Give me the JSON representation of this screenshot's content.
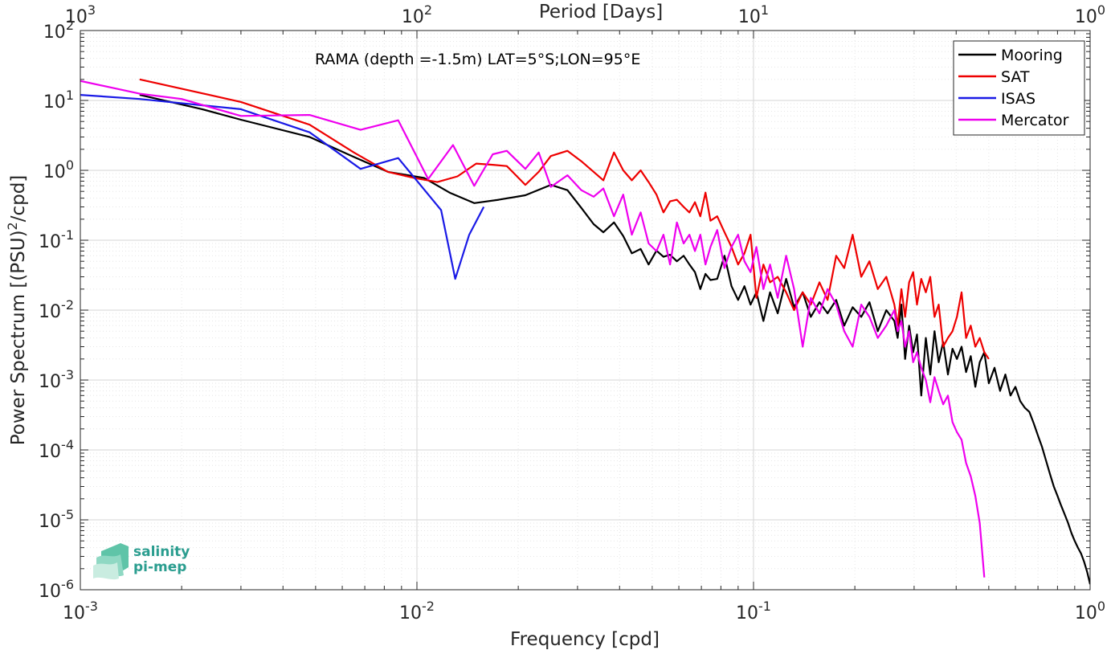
{
  "chart_data": {
    "type": "line",
    "title": "",
    "annotation": "RAMA (depth =-1.5m) LAT=5°S;LON=95°E",
    "xlabel": "Frequency [cpd]",
    "ylabel": "Power Spectrum [(PSU)^2/cpd]",
    "top_xlabel": "Period [Days]",
    "xscale": "log",
    "yscale": "log",
    "xlim": [
      0.001,
      1
    ],
    "ylim": [
      1e-06,
      100
    ],
    "grid": true,
    "legend_position": "top-right",
    "x_ticks": [
      {
        "value": 0.001,
        "base": "10",
        "exp": "-3"
      },
      {
        "value": 0.01,
        "base": "10",
        "exp": "-2"
      },
      {
        "value": 0.1,
        "base": "10",
        "exp": "-1"
      },
      {
        "value": 1,
        "base": "10",
        "exp": "0"
      }
    ],
    "top_ticks": [
      {
        "value": 0.001,
        "base": "10",
        "exp": "3"
      },
      {
        "value": 0.01,
        "base": "10",
        "exp": "2"
      },
      {
        "value": 0.1,
        "base": "10",
        "exp": "1"
      },
      {
        "value": 1,
        "base": "10",
        "exp": "0"
      }
    ],
    "y_ticks": [
      {
        "value": 100,
        "base": "10",
        "exp": "2"
      },
      {
        "value": 10,
        "base": "10",
        "exp": "1"
      },
      {
        "value": 1,
        "base": "10",
        "exp": "0"
      },
      {
        "value": 0.1,
        "base": "10",
        "exp": "-1"
      },
      {
        "value": 0.01,
        "base": "10",
        "exp": "-2"
      },
      {
        "value": 0.001,
        "base": "10",
        "exp": "-3"
      },
      {
        "value": 0.0001,
        "base": "10",
        "exp": "-4"
      },
      {
        "value": 1e-05,
        "base": "10",
        "exp": "-5"
      },
      {
        "value": 1e-06,
        "base": "10",
        "exp": "-6"
      }
    ],
    "series": [
      {
        "name": "Mooring",
        "color": "#000000",
        "x": [
          0.0015,
          0.0023,
          0.003,
          0.0048,
          0.0065,
          0.0082,
          0.0105,
          0.0125,
          0.0148,
          0.0175,
          0.021,
          0.025,
          0.028,
          0.0308,
          0.0335,
          0.0358,
          0.0385,
          0.041,
          0.0435,
          0.0462,
          0.0488,
          0.0515,
          0.054,
          0.0565,
          0.0592,
          0.062,
          0.0645,
          0.067,
          0.0695,
          0.072,
          0.0745,
          0.078,
          0.082,
          0.086,
          0.09,
          0.094,
          0.098,
          0.102,
          0.107,
          0.112,
          0.118,
          0.125,
          0.132,
          0.14,
          0.148,
          0.157,
          0.166,
          0.176,
          0.186,
          0.197,
          0.209,
          0.221,
          0.234,
          0.248,
          0.262,
          0.268,
          0.275,
          0.282,
          0.29,
          0.298,
          0.306,
          0.315,
          0.325,
          0.335,
          0.345,
          0.355,
          0.366,
          0.378,
          0.39,
          0.402,
          0.415,
          0.428,
          0.442,
          0.456,
          0.47,
          0.485,
          0.5,
          0.52,
          0.54,
          0.56,
          0.58,
          0.6,
          0.62,
          0.64,
          0.66,
          0.68,
          0.7,
          0.72,
          0.74,
          0.76,
          0.78,
          0.8,
          0.82,
          0.84,
          0.86,
          0.88,
          0.9,
          0.92,
          0.94,
          0.96,
          0.98,
          1.0
        ],
        "y": [
          12,
          7.5,
          5.3,
          3.0,
          1.55,
          0.95,
          0.78,
          0.48,
          0.34,
          0.38,
          0.44,
          0.62,
          0.52,
          0.29,
          0.17,
          0.13,
          0.18,
          0.115,
          0.065,
          0.075,
          0.045,
          0.071,
          0.058,
          0.062,
          0.05,
          0.06,
          0.045,
          0.035,
          0.02,
          0.033,
          0.027,
          0.028,
          0.06,
          0.022,
          0.014,
          0.022,
          0.012,
          0.018,
          0.007,
          0.018,
          0.009,
          0.028,
          0.011,
          0.018,
          0.008,
          0.013,
          0.009,
          0.014,
          0.006,
          0.011,
          0.008,
          0.013,
          0.005,
          0.01,
          0.007,
          0.004,
          0.012,
          0.002,
          0.006,
          0.0025,
          0.0045,
          0.0006,
          0.004,
          0.0012,
          0.005,
          0.0018,
          0.0035,
          0.0012,
          0.0028,
          0.002,
          0.003,
          0.0013,
          0.0022,
          0.0008,
          0.0018,
          0.0025,
          0.0009,
          0.0015,
          0.0007,
          0.0012,
          0.0006,
          0.0008,
          0.0005,
          0.0004,
          0.00035,
          0.00024,
          0.00016,
          0.00011,
          7e-05,
          4.5e-05,
          3e-05,
          2.2e-05,
          1.6e-05,
          1.2e-05,
          9e-06,
          6.5e-06,
          5e-06,
          4e-06,
          3.3e-06,
          2.5e-06,
          1.8e-06,
          1.2e-06
        ]
      },
      {
        "name": "SAT",
        "color": "#ee0000",
        "x": [
          0.0015,
          0.003,
          0.0048,
          0.0065,
          0.0082,
          0.0098,
          0.0115,
          0.0132,
          0.015,
          0.0168,
          0.0185,
          0.021,
          0.023,
          0.025,
          0.028,
          0.0308,
          0.0335,
          0.0358,
          0.0385,
          0.041,
          0.0435,
          0.0462,
          0.0488,
          0.0515,
          0.054,
          0.0565,
          0.0592,
          0.062,
          0.0645,
          0.067,
          0.0695,
          0.072,
          0.0745,
          0.078,
          0.082,
          0.086,
          0.09,
          0.094,
          0.098,
          0.102,
          0.107,
          0.112,
          0.118,
          0.125,
          0.132,
          0.14,
          0.148,
          0.157,
          0.166,
          0.176,
          0.186,
          0.197,
          0.209,
          0.221,
          0.234,
          0.248,
          0.262,
          0.268,
          0.275,
          0.282,
          0.29,
          0.298,
          0.306,
          0.315,
          0.325,
          0.335,
          0.345,
          0.355,
          0.366,
          0.378,
          0.39,
          0.402,
          0.415,
          0.428,
          0.442,
          0.456,
          0.47,
          0.485,
          0.5
        ],
        "y": [
          20,
          9.5,
          4.5,
          1.8,
          0.95,
          0.78,
          0.68,
          0.82,
          1.25,
          1.2,
          1.15,
          0.62,
          0.95,
          1.6,
          1.9,
          1.35,
          0.95,
          0.72,
          1.8,
          1.0,
          0.72,
          1.0,
          0.68,
          0.45,
          0.25,
          0.36,
          0.38,
          0.3,
          0.25,
          0.35,
          0.22,
          0.48,
          0.19,
          0.22,
          0.13,
          0.08,
          0.045,
          0.065,
          0.12,
          0.015,
          0.045,
          0.025,
          0.03,
          0.018,
          0.01,
          0.018,
          0.012,
          0.025,
          0.014,
          0.06,
          0.04,
          0.12,
          0.03,
          0.05,
          0.02,
          0.03,
          0.012,
          0.006,
          0.02,
          0.008,
          0.025,
          0.035,
          0.012,
          0.028,
          0.018,
          0.03,
          0.008,
          0.012,
          0.003,
          0.004,
          0.005,
          0.008,
          0.018,
          0.004,
          0.006,
          0.003,
          0.004,
          0.0025,
          0.002
        ]
      },
      {
        "name": "ISAS",
        "color": "#1a1ae6",
        "x": [
          0.001,
          0.0015,
          0.003,
          0.0048,
          0.0068,
          0.0088,
          0.0118,
          0.013,
          0.0143,
          0.0158
        ],
        "y": [
          12,
          10.5,
          7.5,
          3.5,
          1.05,
          1.5,
          0.27,
          0.028,
          0.12,
          0.3
        ]
      },
      {
        "name": "Mercator",
        "color": "#ee00ee",
        "x": [
          0.001,
          0.0015,
          0.002,
          0.003,
          0.0048,
          0.0068,
          0.0088,
          0.0108,
          0.0128,
          0.0148,
          0.0168,
          0.0185,
          0.021,
          0.023,
          0.025,
          0.028,
          0.0308,
          0.0335,
          0.0358,
          0.0385,
          0.041,
          0.0435,
          0.0462,
          0.0488,
          0.0515,
          0.054,
          0.0565,
          0.0592,
          0.062,
          0.0645,
          0.067,
          0.0695,
          0.072,
          0.0745,
          0.078,
          0.082,
          0.086,
          0.09,
          0.094,
          0.098,
          0.102,
          0.107,
          0.112,
          0.118,
          0.125,
          0.132,
          0.14,
          0.148,
          0.157,
          0.166,
          0.176,
          0.186,
          0.197,
          0.209,
          0.221,
          0.234,
          0.248,
          0.262,
          0.268,
          0.275,
          0.282,
          0.29,
          0.298,
          0.306,
          0.315,
          0.325,
          0.335,
          0.345,
          0.355,
          0.366,
          0.378,
          0.39,
          0.402,
          0.415,
          0.428,
          0.442,
          0.456,
          0.47,
          0.485
        ],
        "y": [
          19,
          12.5,
          10.5,
          6.0,
          6.2,
          3.8,
          5.2,
          0.75,
          2.3,
          0.6,
          1.7,
          1.9,
          1.05,
          1.8,
          0.58,
          0.85,
          0.52,
          0.42,
          0.55,
          0.22,
          0.45,
          0.12,
          0.25,
          0.09,
          0.07,
          0.12,
          0.045,
          0.18,
          0.09,
          0.12,
          0.07,
          0.12,
          0.045,
          0.08,
          0.14,
          0.04,
          0.08,
          0.12,
          0.05,
          0.035,
          0.08,
          0.02,
          0.045,
          0.015,
          0.06,
          0.02,
          0.003,
          0.015,
          0.009,
          0.02,
          0.012,
          0.005,
          0.003,
          0.012,
          0.008,
          0.004,
          0.006,
          0.01,
          0.005,
          0.007,
          0.003,
          0.005,
          0.0018,
          0.0025,
          0.0015,
          0.001,
          0.00048,
          0.0011,
          0.0007,
          0.00045,
          0.0006,
          0.00025,
          0.00018,
          0.00014,
          6.5e-05,
          4.2e-05,
          2.2e-05,
          9e-06,
          1.5e-06
        ]
      }
    ]
  },
  "logo": {
    "line1": "salinity",
    "line2": "pi-mep",
    "color": "#2a9d8f"
  }
}
